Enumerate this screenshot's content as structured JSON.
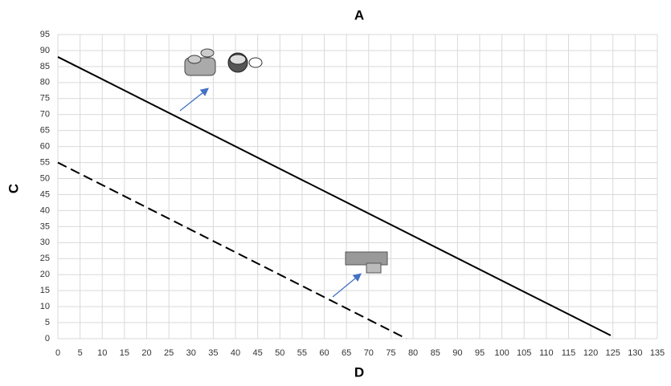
{
  "chart_data": {
    "type": "line",
    "title": "A",
    "x_label": "D",
    "y_label": "C",
    "series": [
      {
        "name": "solid",
        "color": "#000000",
        "style": "solid",
        "x": [
          0,
          124.5
        ],
        "values": [
          88,
          1
        ]
      },
      {
        "name": "dashed",
        "color": "#000000",
        "style": "dashed",
        "x": [
          0,
          78.5
        ],
        "values": [
          55,
          0
        ]
      }
    ],
    "xlim": [
      0,
      135
    ],
    "ylim": [
      0,
      95
    ],
    "xticks": [
      0,
      5,
      10,
      15,
      20,
      25,
      30,
      35,
      40,
      45,
      50,
      55,
      60,
      65,
      70,
      75,
      80,
      85,
      90,
      95,
      100,
      105,
      110,
      115,
      120,
      125,
      130,
      135
    ],
    "yticks": [
      0,
      5,
      10,
      15,
      20,
      25,
      30,
      35,
      40,
      45,
      50,
      55,
      60,
      65,
      70,
      75,
      80,
      85,
      90,
      95
    ],
    "grid": true
  }
}
